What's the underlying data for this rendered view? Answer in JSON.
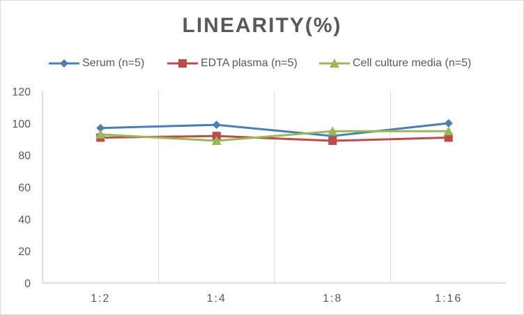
{
  "chart_data": {
    "type": "line",
    "title": "LINEARITY(%)",
    "xlabel": "",
    "ylabel": "",
    "categories": [
      "1:2",
      "1:4",
      "1:8",
      "1:16"
    ],
    "ylim": [
      0,
      120
    ],
    "yticks": [
      0,
      20,
      40,
      60,
      80,
      100,
      120
    ],
    "grid": "vertical category dividers",
    "legend_position": "top",
    "series": [
      {
        "name": "Serum (n=5)",
        "values": [
          97,
          99,
          92,
          100
        ],
        "color": "#4a7ebb",
        "marker": "diamond"
      },
      {
        "name": "EDTA plasma (n=5)",
        "values": [
          91,
          92,
          89,
          91
        ],
        "color": "#be4b48",
        "marker": "square"
      },
      {
        "name": "Cell culture media (n=5)",
        "values": [
          93,
          89,
          95,
          95
        ],
        "color": "#98b954",
        "marker": "triangle"
      }
    ]
  }
}
